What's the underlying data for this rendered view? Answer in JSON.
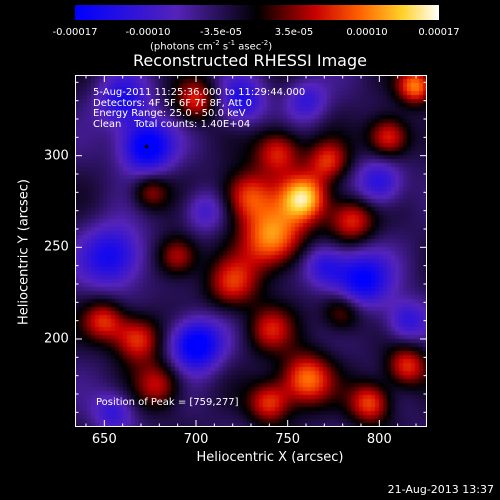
{
  "chart_data": {
    "type": "heatmap",
    "title": "Reconstructed RHESSI Image",
    "xlabel": "Heliocentric X (arcsec)",
    "ylabel": "Heliocentric Y (arcsec)",
    "xlim": [
      634,
      826
    ],
    "ylim": [
      152,
      344
    ],
    "x_ticks": [
      "650",
      "700",
      "750",
      "800"
    ],
    "y_ticks": [
      "200",
      "250",
      "300"
    ],
    "colorbar": {
      "range": [
        -0.00017,
        0.00017
      ],
      "tick_labels": [
        "-0.00017",
        "-0.00010",
        "-3.5e-05",
        "3.5e-05",
        "0.00010",
        "0.00017"
      ],
      "units_text": "(photons cm",
      "units_exp1": "-2",
      "units_mid": " s",
      "units_exp2": "-1",
      "units_mid2": " asec",
      "units_exp3": "-2",
      "units_end": ")"
    },
    "info_lines": [
      "5-Aug-2011 11:25:36.000 to 11:29:44.000",
      "Detectors: 4F 5F 6F 7F 8F, Att 0",
      "Energy Range: 25.0 - 50.0 keV",
      "Clean    Total counts: 1.40E+04"
    ],
    "peak_text": "Position of Peak = [759,277]",
    "peak": [
      759,
      277
    ],
    "sources": [
      {
        "x": 759,
        "y": 277,
        "v": 0.00017,
        "s": 9
      },
      {
        "x": 742,
        "y": 255,
        "v": 0.00015,
        "s": 12
      },
      {
        "x": 728,
        "y": 278,
        "v": 0.00012,
        "s": 10
      },
      {
        "x": 745,
        "y": 302,
        "v": 0.00011,
        "s": 9
      },
      {
        "x": 772,
        "y": 297,
        "v": 0.0001,
        "s": 8
      },
      {
        "x": 785,
        "y": 265,
        "v": 0.00011,
        "s": 9
      },
      {
        "x": 805,
        "y": 310,
        "v": 0.00012,
        "s": 8
      },
      {
        "x": 820,
        "y": 338,
        "v": 0.00014,
        "s": 7
      },
      {
        "x": 720,
        "y": 230,
        "v": 0.0001,
        "s": 10
      },
      {
        "x": 740,
        "y": 205,
        "v": 9e-05,
        "s": 9
      },
      {
        "x": 760,
        "y": 178,
        "v": 0.00014,
        "s": 10
      },
      {
        "x": 740,
        "y": 165,
        "v": 0.00011,
        "s": 8
      },
      {
        "x": 668,
        "y": 200,
        "v": 0.00012,
        "s": 9
      },
      {
        "x": 650,
        "y": 210,
        "v": 0.0001,
        "s": 8
      },
      {
        "x": 680,
        "y": 175,
        "v": 9e-05,
        "s": 9
      },
      {
        "x": 795,
        "y": 165,
        "v": 0.00012,
        "s": 8
      },
      {
        "x": 815,
        "y": 185,
        "v": 0.00011,
        "s": 8
      },
      {
        "x": 690,
        "y": 245,
        "v": 0.0001,
        "s": 8
      },
      {
        "x": 675,
        "y": 280,
        "v": 8e-05,
        "s": 7
      },
      {
        "x": 700,
        "y": 330,
        "v": 0.0001,
        "s": 8
      },
      {
        "x": 780,
        "y": 215,
        "v": 9e-05,
        "s": 8
      },
      {
        "x": 673,
        "y": 305,
        "v": -0.00016,
        "s": 10
      },
      {
        "x": 700,
        "y": 197,
        "v": -0.00016,
        "s": 10
      },
      {
        "x": 790,
        "y": 232,
        "v": -0.00014,
        "s": 11
      },
      {
        "x": 655,
        "y": 245,
        "v": -0.00012,
        "s": 12
      },
      {
        "x": 660,
        "y": 330,
        "v": -0.0001,
        "s": 10
      },
      {
        "x": 800,
        "y": 285,
        "v": -0.0001,
        "s": 9
      },
      {
        "x": 725,
        "y": 330,
        "v": -0.0001,
        "s": 9
      },
      {
        "x": 770,
        "y": 240,
        "v": -9e-05,
        "s": 8
      },
      {
        "x": 655,
        "y": 160,
        "v": -8e-05,
        "s": 8
      },
      {
        "x": 815,
        "y": 210,
        "v": -9e-05,
        "s": 8
      },
      {
        "x": 760,
        "y": 330,
        "v": -8e-05,
        "s": 8
      },
      {
        "x": 705,
        "y": 270,
        "v": -7e-05,
        "s": 8
      }
    ]
  },
  "footer_date": "21-Aug-2013 13:37"
}
